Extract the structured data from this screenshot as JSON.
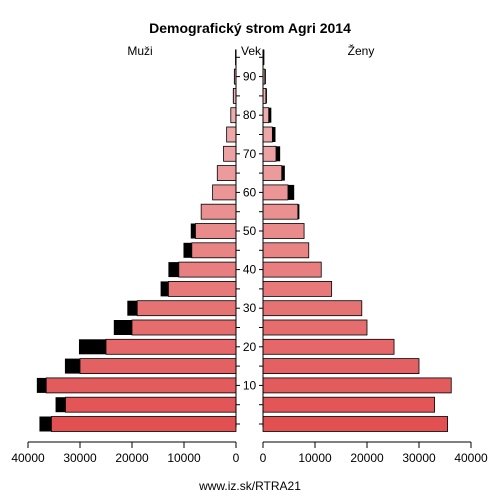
{
  "chart_data": {
    "type": "bar",
    "title": "Demografický strom Agri 2014",
    "left_label": "Muži",
    "center_label": "Vek",
    "right_label": "Ženy",
    "footer": "www.iz.sk/RTRA21",
    "age_groups": [
      "0-4",
      "5-9",
      "10-14",
      "15-19",
      "20-24",
      "25-29",
      "30-34",
      "35-39",
      "40-44",
      "45-49",
      "50-54",
      "55-59",
      "60-64",
      "65-69",
      "70-74",
      "75-79",
      "80-84",
      "85-89",
      "90-94",
      "95+"
    ],
    "age_ticks": [
      10,
      20,
      30,
      40,
      50,
      60,
      70,
      80,
      90
    ],
    "x_ticks": [
      40000,
      30000,
      20000,
      10000,
      0
    ],
    "x_ticks_right": [
      0,
      10000,
      20000,
      30000,
      40000
    ],
    "xlim": [
      0,
      40000
    ],
    "series": [
      {
        "name": "Muži",
        "values": [
          35500,
          32800,
          36500,
          30000,
          25000,
          20000,
          19000,
          13000,
          11000,
          8500,
          7800,
          6700,
          4500,
          3600,
          2400,
          1800,
          1000,
          500,
          300,
          100
        ],
        "excess": [
          2300,
          1900,
          1800,
          2900,
          5200,
          3500,
          1900,
          1500,
          2000,
          1600,
          900,
          0,
          0,
          0,
          0,
          0,
          0,
          100,
          100,
          0
        ]
      },
      {
        "name": "Ženy",
        "values": [
          35500,
          33000,
          36200,
          30000,
          25200,
          20000,
          19000,
          13200,
          11200,
          8800,
          7900,
          6700,
          4800,
          3600,
          2500,
          1800,
          1100,
          550,
          350,
          150
        ],
        "excess": [
          0,
          0,
          0,
          0,
          0,
          0,
          0,
          0,
          0,
          0,
          0,
          300,
          1200,
          600,
          800,
          600,
          500,
          200,
          200,
          100
        ]
      }
    ]
  }
}
